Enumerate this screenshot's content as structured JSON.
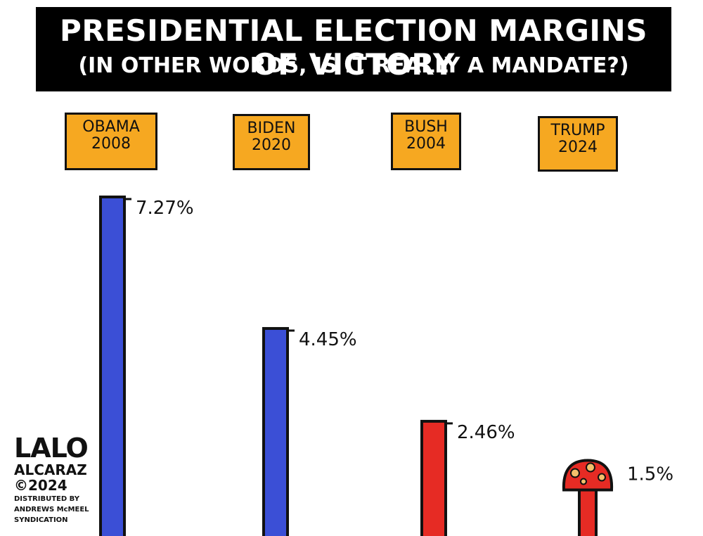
{
  "title": "PRESIDENTIAL ELECTION MARGINS OF VICTORY",
  "subtitle": "(IN OTHER WORDS, IS IT REALLY A MANDATE?)",
  "chart_data": {
    "type": "bar",
    "categories": [
      {
        "line1": "OBAMA",
        "line2": "2008"
      },
      {
        "line1": "BIDEN",
        "line2": "2020"
      },
      {
        "line1": "BUSH",
        "line2": "2004"
      },
      {
        "line1": "TRUMP",
        "line2": "2024"
      }
    ],
    "values": [
      7.27,
      4.45,
      2.46,
      1.5
    ],
    "value_labels": [
      "7.27%",
      "4.45%",
      "2.46%",
      "1.5%"
    ],
    "colors": [
      "#3b4fd6",
      "#3b4fd6",
      "#e62b24",
      "#e62b24"
    ],
    "last_bar_style": "mushroom",
    "mushroom_spot_color": "#f4c06b",
    "label_box_color": "#f6a821",
    "ylim": [
      0,
      7.27
    ]
  },
  "signature": {
    "name_line1": "LALO",
    "name_line2": "ALCARAZ",
    "copyright": "©2024",
    "distributed_line1": "DISTRIBUTED BY",
    "distributed_line2": "ANDREWS McMEEL",
    "distributed_line3": "SYNDICATION"
  }
}
